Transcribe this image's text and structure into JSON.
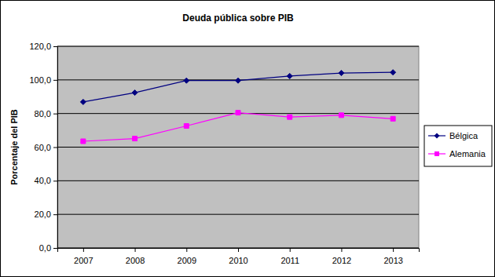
{
  "chart_data": {
    "type": "line",
    "title": "Deuda pública sobre PIB",
    "y_label": "Porcentaje del PIB",
    "categories": [
      "2007",
      "2008",
      "2009",
      "2010",
      "2011",
      "2012",
      "2013"
    ],
    "series": [
      {
        "name": "Bélgica",
        "color": "#000080",
        "marker": "diamond",
        "values": [
          86.9,
          92.4,
          99.6,
          99.6,
          102.3,
          104.1,
          104.5
        ]
      },
      {
        "name": "Alemania",
        "color": "#ff00ff",
        "marker": "square",
        "values": [
          63.5,
          65.1,
          72.6,
          80.5,
          77.9,
          79.0,
          76.9
        ]
      }
    ],
    "ylim": [
      0,
      120
    ],
    "yticks": [
      {
        "value": 0,
        "label": "0,0"
      },
      {
        "value": 20,
        "label": "20,0"
      },
      {
        "value": 40,
        "label": "40,0"
      },
      {
        "value": 60,
        "label": "60,0"
      },
      {
        "value": 80,
        "label": "80,0"
      },
      {
        "value": 100,
        "label": "100,0"
      },
      {
        "value": 120,
        "label": "120,0"
      }
    ],
    "grid": true,
    "legend": "right"
  }
}
